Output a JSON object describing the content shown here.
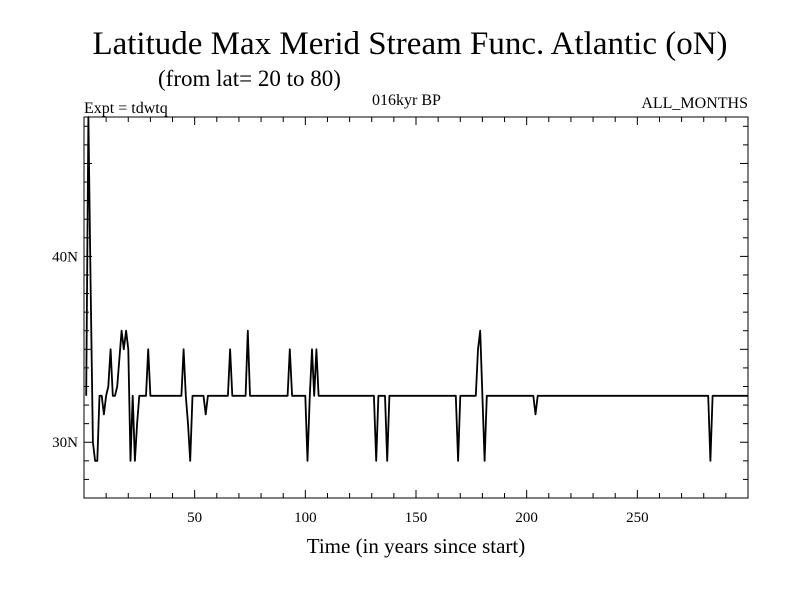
{
  "chart_data": {
    "type": "line",
    "title": "Latitude Max Merid Stream Func. Atlantic (oN)",
    "subtitle": "(from lat= 20 to 80)",
    "annotations": {
      "experiment": "Expt = tdwtq",
      "period": "016kyr BP",
      "months": "ALL_MONTHS"
    },
    "xlabel": "Time (in years since start)",
    "ylabel": "",
    "xlim": [
      0,
      300
    ],
    "ylim": [
      27,
      47.5
    ],
    "x_ticks": [
      50,
      100,
      150,
      200,
      250
    ],
    "x_tick_labels": [
      "50",
      "100",
      "150",
      "200",
      "250"
    ],
    "y_ticks": [
      30,
      40
    ],
    "y_tick_labels": [
      "30N",
      "40N"
    ],
    "grid": false,
    "series": [
      {
        "color": "#000000",
        "points": [
          [
            1,
            32.5
          ],
          [
            2,
            47.5
          ],
          [
            3,
            38.5
          ],
          [
            4,
            30
          ],
          [
            5,
            29
          ],
          [
            6,
            29
          ],
          [
            7,
            32.5
          ],
          [
            8,
            32.5
          ],
          [
            9,
            31.5
          ],
          [
            10,
            32.5
          ],
          [
            11,
            33
          ],
          [
            12,
            35
          ],
          [
            13,
            32.5
          ],
          [
            14,
            32.5
          ],
          [
            15,
            33
          ],
          [
            16,
            34.5
          ],
          [
            17,
            36
          ],
          [
            18,
            35
          ],
          [
            19,
            36
          ],
          [
            20,
            35
          ],
          [
            21,
            29
          ],
          [
            22,
            32.5
          ],
          [
            23,
            29
          ],
          [
            24,
            31
          ],
          [
            25,
            32.5
          ],
          [
            28,
            32.5
          ],
          [
            29,
            35
          ],
          [
            30,
            32.5
          ],
          [
            44,
            32.5
          ],
          [
            45,
            35
          ],
          [
            46,
            32.5
          ],
          [
            47,
            31
          ],
          [
            48,
            29
          ],
          [
            49,
            32.5
          ],
          [
            54,
            32.5
          ],
          [
            55,
            31.5
          ],
          [
            56,
            32.5
          ],
          [
            65,
            32.5
          ],
          [
            66,
            35
          ],
          [
            67,
            32.5
          ],
          [
            73,
            32.5
          ],
          [
            74,
            36
          ],
          [
            75,
            32.5
          ],
          [
            92,
            32.5
          ],
          [
            93,
            35
          ],
          [
            94,
            32.5
          ],
          [
            100,
            32.5
          ],
          [
            101,
            29
          ],
          [
            102,
            32.5
          ],
          [
            103,
            35
          ],
          [
            104,
            32.5
          ],
          [
            105,
            35
          ],
          [
            106,
            32.5
          ],
          [
            131,
            32.5
          ],
          [
            132,
            29
          ],
          [
            133,
            32.5
          ],
          [
            136,
            32.5
          ],
          [
            137,
            29
          ],
          [
            138,
            32.5
          ],
          [
            168,
            32.5
          ],
          [
            169,
            29
          ],
          [
            170,
            32.5
          ],
          [
            177,
            32.5
          ],
          [
            178,
            35
          ],
          [
            179,
            36
          ],
          [
            180,
            32.5
          ],
          [
            181,
            29
          ],
          [
            182,
            32.5
          ],
          [
            203,
            32.5
          ],
          [
            204,
            31.5
          ],
          [
            205,
            32.5
          ],
          [
            282,
            32.5
          ],
          [
            283,
            29
          ],
          [
            284,
            32.5
          ],
          [
            300,
            32.5
          ]
        ]
      }
    ]
  }
}
